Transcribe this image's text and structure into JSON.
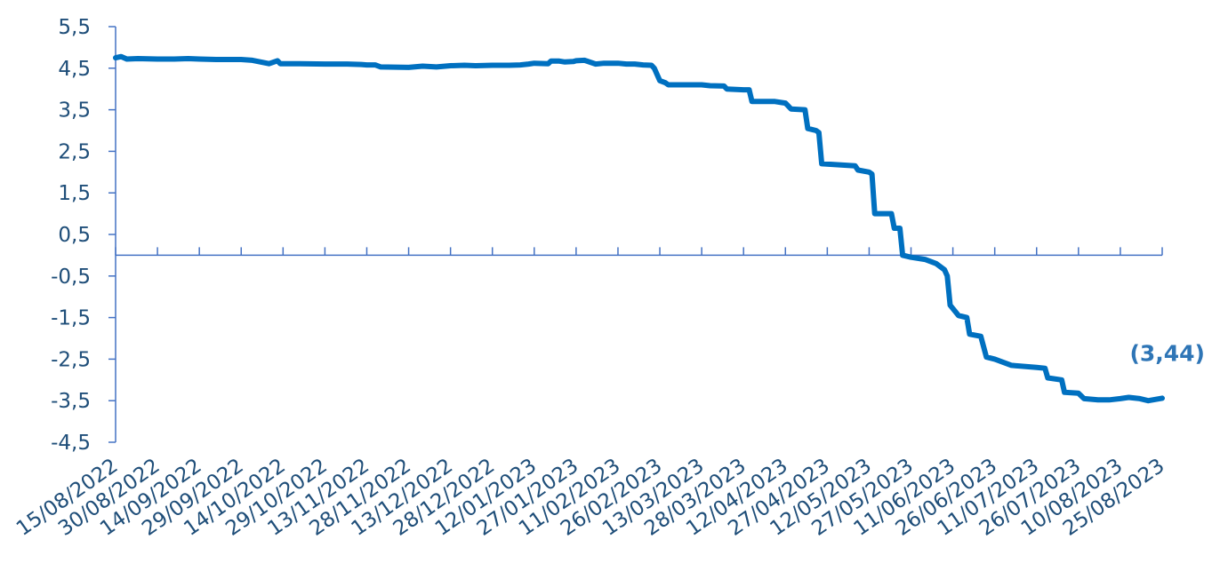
{
  "chart_data": {
    "type": "line",
    "title": "",
    "xlabel": "",
    "ylabel": "",
    "ylim": [
      -4.5,
      5.5
    ],
    "grid": false,
    "legend": "none",
    "line_color": "#0070c0",
    "annotation_color": "#2e75b6",
    "axis_color": "#4472c4",
    "label_color": "#1f4e79",
    "y_ticks": [
      "5,5",
      "4,5",
      "3,5",
      "2,5",
      "1,5",
      "0,5",
      "-0,5",
      "-1,5",
      "-2,5",
      "-3,5",
      "-4,5"
    ],
    "x_ticks": [
      "15/08/2022",
      "30/08/2022",
      "14/09/2022",
      "29/09/2022",
      "14/10/2022",
      "29/10/2022",
      "13/11/2022",
      "28/11/2022",
      "13/12/2022",
      "28/12/2022",
      "12/01/2023",
      "27/01/2023",
      "11/02/2023",
      "26/02/2023",
      "13/03/2023",
      "28/03/2023",
      "12/04/2023",
      "27/04/2023",
      "12/05/2023",
      "27/05/2023",
      "11/06/2023",
      "26/06/2023",
      "11/07/2023",
      "26/07/2023",
      "10/08/2023",
      "25/08/2023"
    ],
    "annotation": {
      "text": "(3,44)",
      "at_x": "25/08/2023",
      "at_y": -3.44
    },
    "series": [
      {
        "points": [
          [
            "15/08/2022",
            4.75
          ],
          [
            "17/08/2022",
            4.78
          ],
          [
            "19/08/2022",
            4.72
          ],
          [
            "23/08/2022",
            4.73
          ],
          [
            "30/08/2022",
            4.72
          ],
          [
            "05/09/2022",
            4.72
          ],
          [
            "10/09/2022",
            4.73
          ],
          [
            "14/09/2022",
            4.72
          ],
          [
            "20/09/2022",
            4.71
          ],
          [
            "25/09/2022",
            4.71
          ],
          [
            "29/09/2022",
            4.71
          ],
          [
            "03/10/2022",
            4.69
          ],
          [
            "06/10/2022",
            4.65
          ],
          [
            "09/10/2022",
            4.61
          ],
          [
            "12/10/2022",
            4.68
          ],
          [
            "13/10/2022",
            4.61
          ],
          [
            "20/10/2022",
            4.61
          ],
          [
            "29/10/2022",
            4.6
          ],
          [
            "06/11/2022",
            4.6
          ],
          [
            "11/11/2022",
            4.59
          ],
          [
            "13/11/2022",
            4.58
          ],
          [
            "16/11/2022",
            4.58
          ],
          [
            "18/11/2022",
            4.53
          ],
          [
            "28/11/2022",
            4.52
          ],
          [
            "03/12/2022",
            4.55
          ],
          [
            "08/12/2022",
            4.53
          ],
          [
            "13/12/2022",
            4.56
          ],
          [
            "18/12/2022",
            4.57
          ],
          [
            "22/12/2022",
            4.56
          ],
          [
            "28/12/2022",
            4.57
          ],
          [
            "03/01/2023",
            4.57
          ],
          [
            "07/01/2023",
            4.58
          ],
          [
            "10/01/2023",
            4.6
          ],
          [
            "12/01/2023",
            4.62
          ],
          [
            "17/01/2023",
            4.61
          ],
          [
            "18/01/2023",
            4.67
          ],
          [
            "21/01/2023",
            4.67
          ],
          [
            "23/01/2023",
            4.65
          ],
          [
            "26/01/2023",
            4.66
          ],
          [
            "27/01/2023",
            4.68
          ],
          [
            "30/01/2023",
            4.69
          ],
          [
            "03/02/2023",
            4.6
          ],
          [
            "06/02/2023",
            4.62
          ],
          [
            "11/02/2023",
            4.62
          ],
          [
            "14/02/2023",
            4.6
          ],
          [
            "17/02/2023",
            4.6
          ],
          [
            "20/02/2023",
            4.58
          ],
          [
            "23/02/2023",
            4.57
          ],
          [
            "24/02/2023",
            4.5
          ],
          [
            "26/02/2023",
            4.2
          ],
          [
            "28/02/2023",
            4.15
          ],
          [
            "01/03/2023",
            4.1
          ],
          [
            "09/03/2023",
            4.1
          ],
          [
            "13/03/2023",
            4.1
          ],
          [
            "16/03/2023",
            4.08
          ],
          [
            "21/03/2023",
            4.07
          ],
          [
            "22/03/2023",
            4.0
          ],
          [
            "28/03/2023",
            3.98
          ],
          [
            "30/03/2023",
            3.98
          ],
          [
            "31/03/2023",
            3.7
          ],
          [
            "08/04/2023",
            3.7
          ],
          [
            "12/04/2023",
            3.66
          ],
          [
            "14/04/2023",
            3.52
          ],
          [
            "19/04/2023",
            3.5
          ],
          [
            "20/04/2023",
            3.05
          ],
          [
            "23/04/2023",
            3.0
          ],
          [
            "24/04/2023",
            2.95
          ],
          [
            "25/04/2023",
            2.2
          ],
          [
            "30/04/2023",
            2.18
          ],
          [
            "07/05/2023",
            2.15
          ],
          [
            "08/05/2023",
            2.05
          ],
          [
            "12/05/2023",
            2.0
          ],
          [
            "13/05/2023",
            1.95
          ],
          [
            "14/05/2023",
            1.0
          ],
          [
            "20/05/2023",
            1.0
          ],
          [
            "21/05/2023",
            0.65
          ],
          [
            "23/05/2023",
            0.65
          ],
          [
            "24/05/2023",
            0.0
          ],
          [
            "27/05/2023",
            -0.05
          ],
          [
            "01/06/2023",
            -0.1
          ],
          [
            "05/06/2023",
            -0.2
          ],
          [
            "08/06/2023",
            -0.35
          ],
          [
            "09/06/2023",
            -0.5
          ],
          [
            "10/06/2023",
            -1.2
          ],
          [
            "13/06/2023",
            -1.45
          ],
          [
            "16/06/2023",
            -1.5
          ],
          [
            "17/06/2023",
            -1.9
          ],
          [
            "21/06/2023",
            -1.95
          ],
          [
            "23/06/2023",
            -2.45
          ],
          [
            "26/06/2023",
            -2.5
          ],
          [
            "02/07/2023",
            -2.65
          ],
          [
            "11/07/2023",
            -2.7
          ],
          [
            "14/07/2023",
            -2.72
          ],
          [
            "15/07/2023",
            -2.95
          ],
          [
            "20/07/2023",
            -3.0
          ],
          [
            "21/07/2023",
            -3.3
          ],
          [
            "26/07/2023",
            -3.32
          ],
          [
            "28/07/2023",
            -3.45
          ],
          [
            "02/08/2023",
            -3.48
          ],
          [
            "06/08/2023",
            -3.48
          ],
          [
            "10/08/2023",
            -3.45
          ],
          [
            "13/08/2023",
            -3.42
          ],
          [
            "17/08/2023",
            -3.45
          ],
          [
            "20/08/2023",
            -3.5
          ],
          [
            "25/08/2023",
            -3.44
          ]
        ]
      }
    ]
  }
}
